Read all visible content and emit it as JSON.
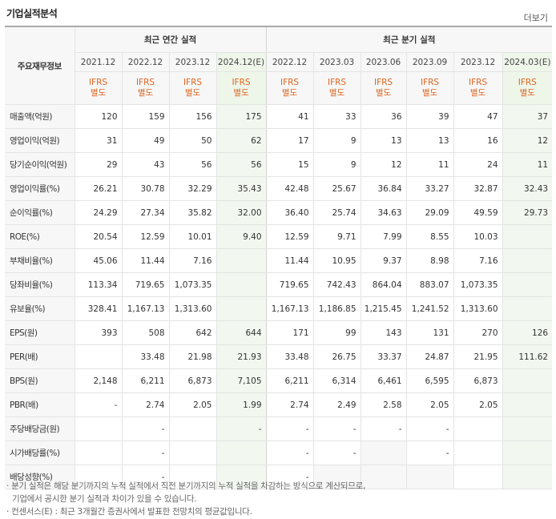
{
  "title": "기업실적분석",
  "more_link": "더보기",
  "header": {
    "row_label": "주요재무정보",
    "annual_group": "최근 연간 실적",
    "quarter_group": "최근 분기 실적",
    "annual_periods": [
      "2021.12",
      "2022.12",
      "2023.12",
      "2024.12(E)"
    ],
    "quarter_periods": [
      "2022.12",
      "2023.03",
      "2023.06",
      "2023.09",
      "2023.12",
      "2024.03(E)"
    ],
    "accounting_line1": "IFRS",
    "accounting_line2": "별도"
  },
  "rows": [
    {
      "label": "매출액(억원)",
      "values": [
        "120",
        "159",
        "156",
        "175",
        "41",
        "33",
        "36",
        "39",
        "47",
        "37"
      ]
    },
    {
      "label": "영업이익(억원)",
      "values": [
        "31",
        "49",
        "50",
        "62",
        "17",
        "9",
        "13",
        "13",
        "16",
        "12"
      ]
    },
    {
      "label": "당기순이익(억원)",
      "values": [
        "29",
        "43",
        "56",
        "56",
        "15",
        "9",
        "12",
        "11",
        "24",
        "11"
      ]
    },
    {
      "label": "영업이익률(%)",
      "values": [
        "26.21",
        "30.78",
        "32.29",
        "35.43",
        "42.48",
        "25.67",
        "36.84",
        "33.27",
        "32.87",
        "32.43"
      ]
    },
    {
      "label": "순이익률(%)",
      "values": [
        "24.29",
        "27.34",
        "35.82",
        "32.00",
        "36.40",
        "25.74",
        "34.63",
        "29.09",
        "49.59",
        "29.73"
      ]
    },
    {
      "label": "ROE(%)",
      "values": [
        "20.54",
        "12.59",
        "10.01",
        "9.40",
        "12.59",
        "9.71",
        "7.99",
        "8.55",
        "10.03",
        ""
      ]
    },
    {
      "label": "부채비율(%)",
      "values": [
        "45.06",
        "11.44",
        "7.16",
        "",
        "11.44",
        "10.95",
        "9.37",
        "8.98",
        "7.16",
        ""
      ]
    },
    {
      "label": "당좌비율(%)",
      "values": [
        "113.34",
        "719.65",
        "1,073.35",
        "",
        "719.65",
        "742.43",
        "864.04",
        "883.07",
        "1,073.35",
        ""
      ]
    },
    {
      "label": "유보율(%)",
      "values": [
        "328.41",
        "1,167.13",
        "1,313.60",
        "",
        "1,167.13",
        "1,186.85",
        "1,215.45",
        "1,241.52",
        "1,313.60",
        ""
      ]
    },
    {
      "label": "EPS(원)",
      "values": [
        "393",
        "508",
        "642",
        "644",
        "171",
        "99",
        "143",
        "131",
        "270",
        "126"
      ]
    },
    {
      "label": "PER(배)",
      "values": [
        "",
        "33.48",
        "21.98",
        "21.93",
        "33.48",
        "26.75",
        "33.37",
        "24.87",
        "21.95",
        "111.62"
      ]
    },
    {
      "label": "BPS(원)",
      "values": [
        "2,148",
        "6,211",
        "6,873",
        "7,105",
        "6,211",
        "6,314",
        "6,461",
        "6,595",
        "6,873",
        ""
      ]
    },
    {
      "label": "PBR(배)",
      "values": [
        "-",
        "2.74",
        "2.05",
        "1.99",
        "2.74",
        "2.49",
        "2.58",
        "2.05",
        "2.05",
        ""
      ]
    },
    {
      "label": "주당배당금(원)",
      "values": [
        "",
        "-",
        "",
        "-",
        "-",
        "-",
        "-",
        "-",
        "",
        ""
      ]
    },
    {
      "label": "시가배당률(%)",
      "values": [
        "",
        "-",
        "",
        "",
        "-",
        "-",
        "",
        "-",
        "",
        ""
      ]
    },
    {
      "label": "배당성향(%)",
      "values": [
        "",
        "-",
        "",
        "",
        "-",
        "",
        "",
        "",
        "",
        ""
      ]
    }
  ],
  "notes": [
    "분기 실적은 해당 분기까지의 누적 실적에서 직전 분기까지의 누적 실적을 차감하는 방식으로 계산되므로,",
    "기업에서 공시한 분기 실적과 차이가 있을 수 있습니다.",
    "컨센서스(E) : 최근 3개월간 증권사에서 발표한 전망치의 평균값입니다."
  ]
}
